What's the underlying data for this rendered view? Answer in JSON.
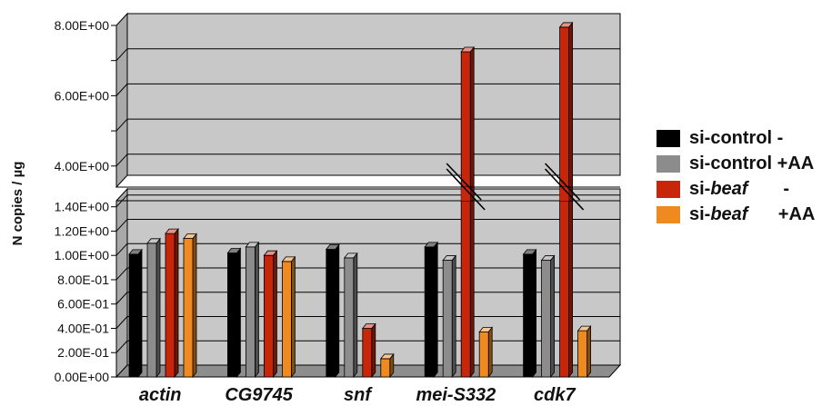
{
  "chart_data": {
    "type": "bar",
    "ylabel": "N copies / µg",
    "xlabel": "",
    "categories": [
      "actin",
      "CG9745",
      "snf",
      "mei-S332",
      "cdk7"
    ],
    "y_ticks_lower": [
      "0.00E+00",
      "2.00E-01",
      "4.00E-01",
      "6.00E-01",
      "8.00E-01",
      "1.00E+00",
      "1.20E+00",
      "1.40E+00"
    ],
    "y_ticks_upper": [
      "4.00E+00",
      "6.00E+00",
      "8.00E+00"
    ],
    "axis_break": {
      "from": 1.45,
      "to": 3.4
    },
    "ylim": [
      0,
      8
    ],
    "series": [
      {
        "name": "si-control -",
        "color": "#000000",
        "values": [
          1.01,
          1.02,
          1.05,
          1.07,
          1.01
        ]
      },
      {
        "name": "si-control +AA",
        "color": "#8c8c8c",
        "values": [
          1.1,
          1.07,
          0.98,
          0.96,
          0.96
        ]
      },
      {
        "name": "si-beaf -",
        "color": "#c8260a",
        "values": [
          1.18,
          1.0,
          0.4,
          7.25,
          7.95
        ]
      },
      {
        "name": "si-beaf +AA",
        "color": "#ee8a20",
        "values": [
          1.14,
          0.95,
          0.15,
          0.37,
          0.38
        ]
      }
    ],
    "legend_position": "right",
    "grid": true
  },
  "legend": [
    {
      "pre": "si-control",
      "em": "",
      "post": " -",
      "color": "#000000"
    },
    {
      "pre": "si-control",
      "em": "",
      "post": " +AA",
      "color": "#8c8c8c"
    },
    {
      "pre": "si-",
      "em": "beaf",
      "post": "       -",
      "color": "#c8260a"
    },
    {
      "pre": "si-",
      "em": "beaf",
      "post": "      +AA",
      "color": "#ee8a20"
    }
  ]
}
